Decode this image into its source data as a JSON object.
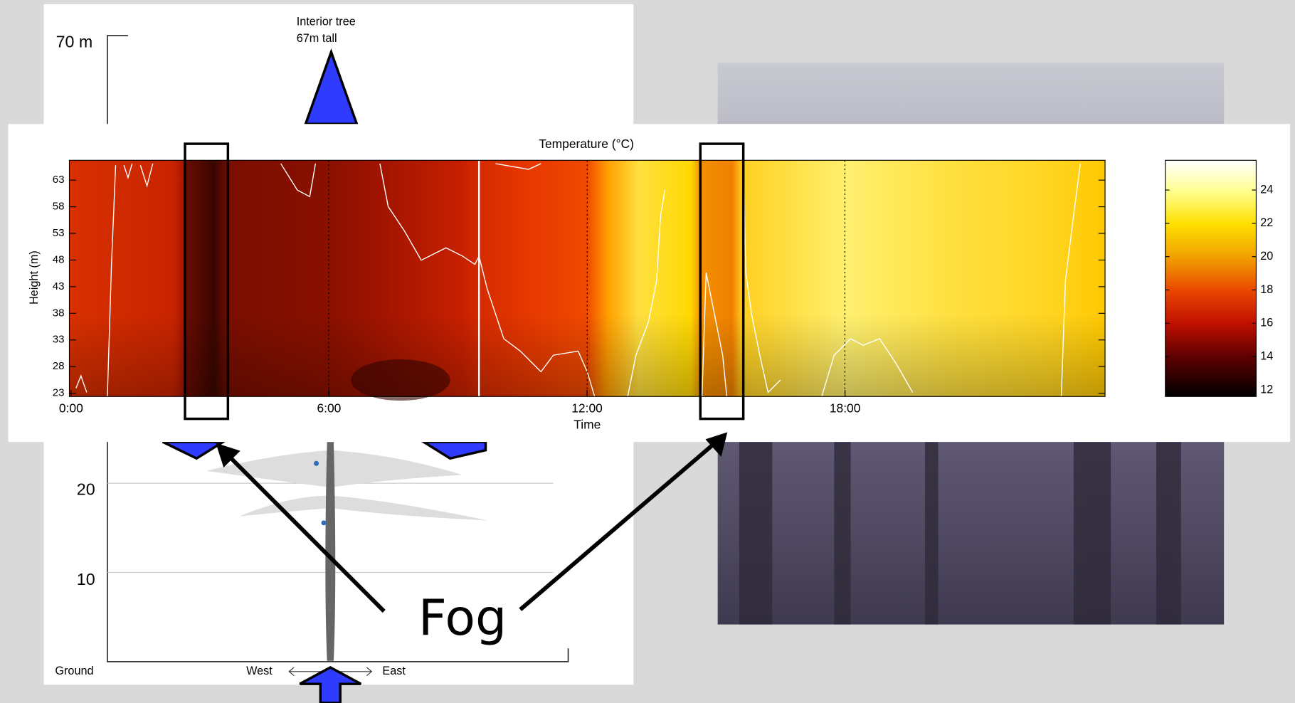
{
  "tree_diagram": {
    "top_label": "70 m",
    "tree_label": [
      "Interior tree",
      "67m tall"
    ],
    "height_labels": [
      "20",
      "10"
    ],
    "ground": "Ground",
    "west": "West",
    "east": "East"
  },
  "heatmap": {
    "title": "Temperature (°C)",
    "y_label": "Height (m)",
    "x_label": "Time",
    "yticks": [
      "63",
      "58",
      "53",
      "48",
      "43",
      "38",
      "33",
      "28",
      "23"
    ],
    "xticks": [
      "0:00",
      "6:00",
      "12:00",
      "18:00"
    ],
    "colorbar_ticks": [
      "24",
      "22",
      "20",
      "18",
      "16",
      "14",
      "12"
    ]
  },
  "annotation": "Fog"
}
